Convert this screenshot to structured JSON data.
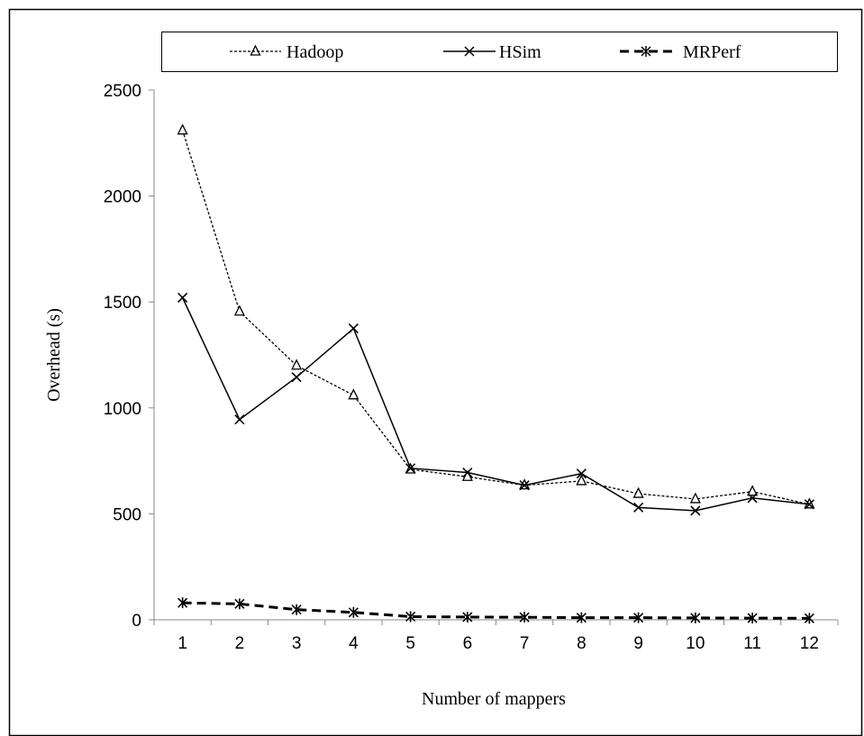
{
  "chart_data": {
    "type": "line",
    "title": "",
    "xlabel": "Number of mappers",
    "ylabel": "Overhead (s)",
    "categories": [
      "1",
      "2",
      "3",
      "4",
      "5",
      "6",
      "7",
      "8",
      "9",
      "10",
      "11",
      "12"
    ],
    "x": [
      1,
      2,
      3,
      4,
      5,
      6,
      7,
      8,
      9,
      10,
      11,
      12
    ],
    "ylim": [
      0,
      2500
    ],
    "yticks": [
      "0",
      "500",
      "1000",
      "1500",
      "2000",
      "2500"
    ],
    "grid": false,
    "legend_position": "top",
    "series": [
      {
        "name": "Hadoop",
        "marker": "triangle",
        "line_style": "dotted",
        "color": "#000000",
        "values": [
          2310,
          1455,
          1200,
          1060,
          710,
          675,
          635,
          655,
          595,
          570,
          605,
          545
        ]
      },
      {
        "name": "HSim",
        "marker": "x",
        "line_style": "solid",
        "color": "#000000",
        "values": [
          1520,
          945,
          1145,
          1375,
          715,
          695,
          635,
          690,
          530,
          515,
          575,
          545
        ]
      },
      {
        "name": "MRPerf",
        "marker": "asterisk",
        "line_style": "dashed",
        "color": "#000000",
        "values": [
          80,
          75,
          48,
          35,
          15,
          13,
          12,
          10,
          10,
          9,
          8,
          7
        ]
      }
    ]
  }
}
